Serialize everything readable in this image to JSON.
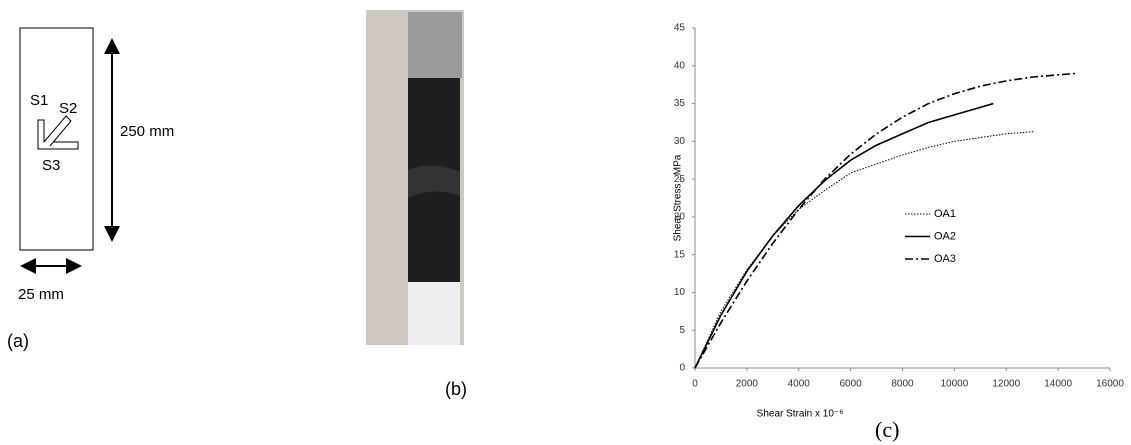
{
  "panel_labels": [
    "(a)",
    "(b)",
    "(c)"
  ],
  "diagram": {
    "gauges": [
      "S1",
      "S2",
      "S3"
    ],
    "length": "250 mm",
    "width": "25 mm"
  },
  "chart_data": {
    "type": "line",
    "x_label": "Shear Strain x 10⁻⁶",
    "y_label": "Shear Stress , MPa",
    "xlim": [
      0,
      16000
    ],
    "xticks": [
      0,
      2000,
      4000,
      6000,
      8000,
      10000,
      12000,
      14000,
      16000
    ],
    "ylim": [
      0,
      45
    ],
    "yticks": [
      0,
      5,
      10,
      15,
      20,
      25,
      30,
      35,
      40,
      45
    ],
    "series": [
      {
        "name": "OA1",
        "color": "#000000",
        "line_style": "dotted",
        "x": [
          0,
          1000,
          2000,
          3000,
          4000,
          5000,
          6000,
          7000,
          8000,
          9000,
          10000,
          11000,
          12000,
          13100
        ],
        "values": [
          0,
          7.5,
          13,
          17.5,
          21,
          23.5,
          25.8,
          27,
          28.2,
          29.2,
          30,
          30.5,
          31,
          31.3
        ]
      },
      {
        "name": "OA2",
        "color": "#000000",
        "line_style": "solid",
        "x": [
          0,
          1000,
          2000,
          3000,
          4000,
          5000,
          6000,
          7000,
          8000,
          9000,
          10000,
          11000,
          11500
        ],
        "values": [
          0,
          7,
          12.8,
          17.5,
          21.5,
          24.8,
          27.5,
          29.5,
          31,
          32.5,
          33.5,
          34.5,
          35
        ]
      },
      {
        "name": "OA3",
        "color": "#000000",
        "line_style": "dashdot",
        "x": [
          0,
          1000,
          2000,
          3000,
          4000,
          5000,
          6000,
          7000,
          8000,
          9000,
          10000,
          11000,
          12000,
          13000,
          14000,
          14700
        ],
        "values": [
          0,
          6,
          11.5,
          16.5,
          21,
          25,
          28.3,
          31,
          33.2,
          35,
          36.3,
          37.3,
          38,
          38.5,
          38.8,
          39
        ]
      }
    ]
  }
}
